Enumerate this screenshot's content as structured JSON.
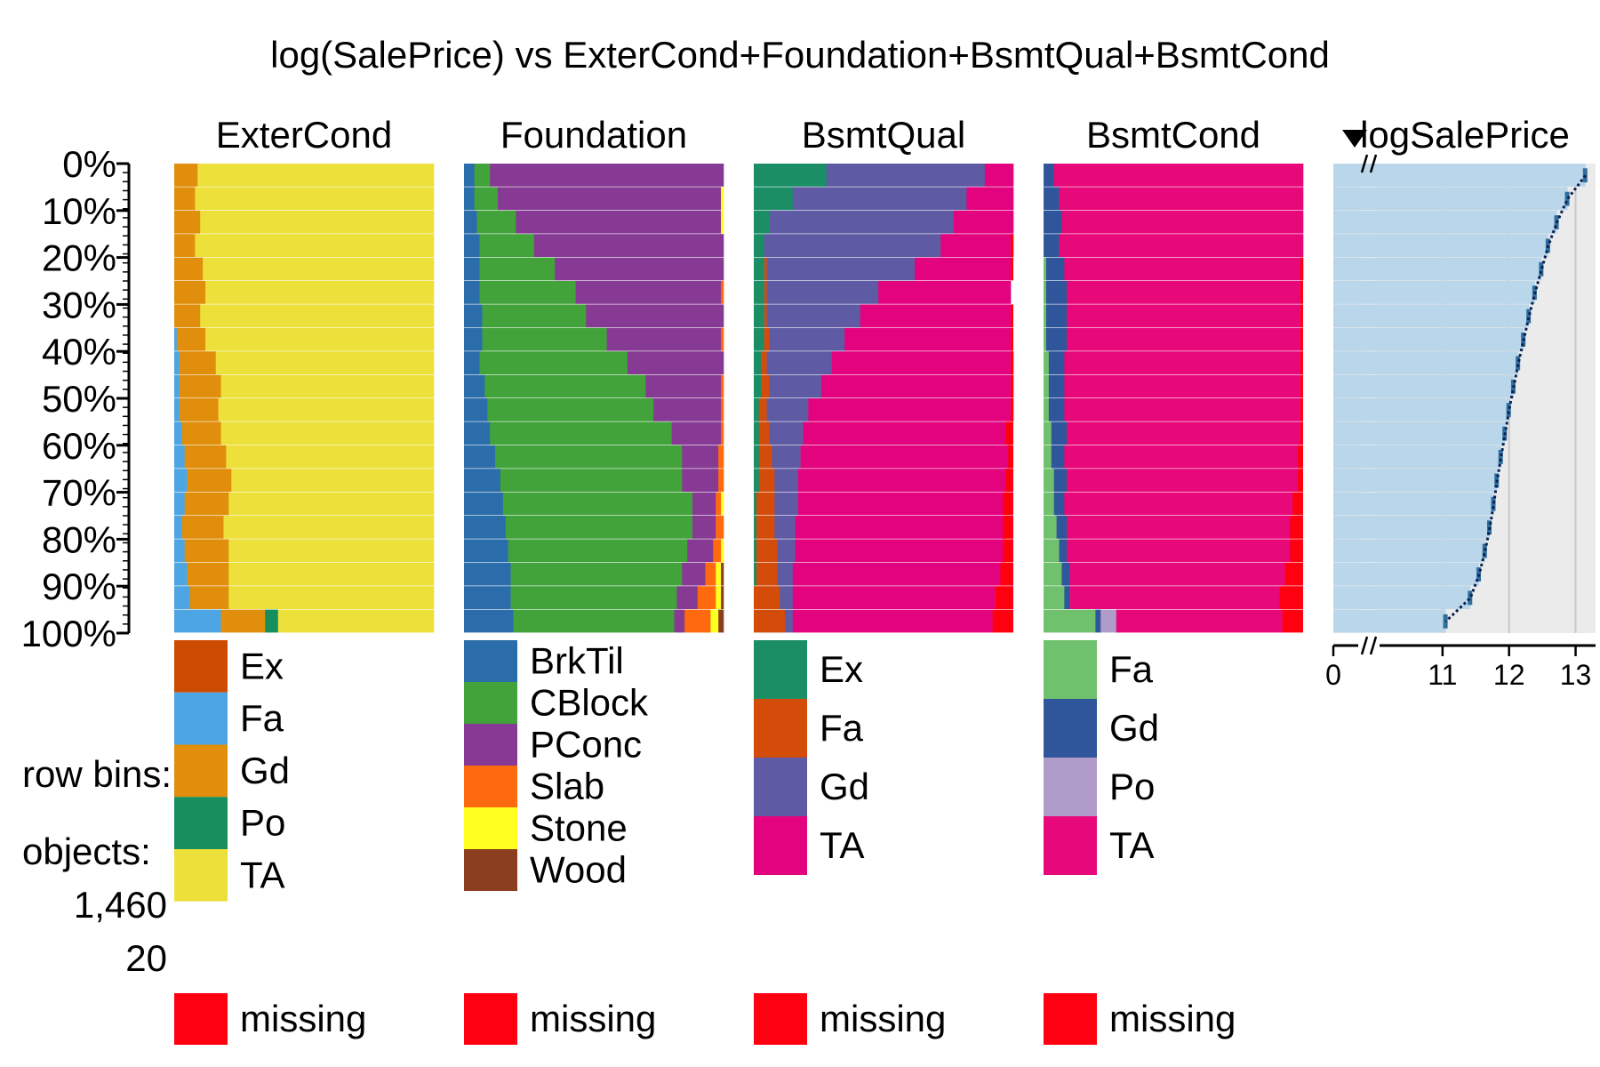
{
  "chart_data": {
    "type": "tableplot",
    "title": "log(SalePrice) vs ExterCond+Foundation+BsmtQual+BsmtCond",
    "sort_variable": "logSalePrice",
    "row_axis": {
      "ticks": [
        "0%",
        "10%",
        "20%",
        "30%",
        "40%",
        "50%",
        "60%",
        "70%",
        "80%",
        "90%",
        "100%"
      ]
    },
    "info": {
      "row_bins_label": "row bins:",
      "row_bins_value": "20",
      "objects_label": "objects:",
      "objects_value": "1,460"
    },
    "missing_label": "missing",
    "missing_color": "#FF0010",
    "categorical": [
      {
        "name": "ExterCond",
        "categories": [
          "Ex",
          "Fa",
          "Gd",
          "Po",
          "TA"
        ],
        "colors": [
          "#CC4C02",
          "#4DA6E3",
          "#E08E0B",
          "#168E5E",
          "#EDE03A"
        ],
        "bin_fractions": [
          [
            0.0,
            0.0,
            0.09,
            0.0,
            0.91
          ],
          [
            0.0,
            0.0,
            0.08,
            0.0,
            0.92
          ],
          [
            0.0,
            0.0,
            0.1,
            0.0,
            0.9
          ],
          [
            0.0,
            0.0,
            0.08,
            0.0,
            0.92
          ],
          [
            0.0,
            0.0,
            0.11,
            0.0,
            0.89
          ],
          [
            0.0,
            0.0,
            0.12,
            0.0,
            0.88
          ],
          [
            0.0,
            0.0,
            0.1,
            0.0,
            0.9
          ],
          [
            0.0,
            0.01,
            0.11,
            0.0,
            0.88
          ],
          [
            0.0,
            0.02,
            0.14,
            0.0,
            0.84
          ],
          [
            0.0,
            0.02,
            0.16,
            0.0,
            0.82
          ],
          [
            0.0,
            0.02,
            0.15,
            0.0,
            0.83
          ],
          [
            0.0,
            0.03,
            0.15,
            0.0,
            0.82
          ],
          [
            0.0,
            0.04,
            0.16,
            0.0,
            0.8
          ],
          [
            0.0,
            0.05,
            0.17,
            0.0,
            0.78
          ],
          [
            0.0,
            0.04,
            0.17,
            0.0,
            0.79
          ],
          [
            0.0,
            0.03,
            0.16,
            0.0,
            0.81
          ],
          [
            0.0,
            0.04,
            0.17,
            0.0,
            0.79
          ],
          [
            0.0,
            0.05,
            0.16,
            0.0,
            0.79
          ],
          [
            0.0,
            0.06,
            0.15,
            0.0,
            0.79
          ],
          [
            0.0,
            0.18,
            0.17,
            0.05,
            0.6
          ]
        ],
        "missing_fractions": [
          0,
          0,
          0,
          0,
          0,
          0,
          0,
          0,
          0,
          0,
          0,
          0,
          0,
          0,
          0,
          0,
          0,
          0,
          0,
          0
        ]
      },
      {
        "name": "Foundation",
        "categories": [
          "BrkTil",
          "CBlock",
          "PConc",
          "Slab",
          "Stone",
          "Wood"
        ],
        "colors": [
          "#2B6CAA",
          "#41A33A",
          "#873A93",
          "#FF6A0E",
          "#FFFF22",
          "#8B3F1F"
        ],
        "bin_fractions": [
          [
            0.04,
            0.06,
            0.9,
            0.0,
            0.0,
            0.0
          ],
          [
            0.04,
            0.09,
            0.86,
            0.0,
            0.01,
            0.0
          ],
          [
            0.05,
            0.15,
            0.79,
            0.0,
            0.01,
            0.0
          ],
          [
            0.06,
            0.21,
            0.73,
            0.0,
            0.0,
            0.0
          ],
          [
            0.06,
            0.29,
            0.65,
            0.0,
            0.0,
            0.0
          ],
          [
            0.06,
            0.37,
            0.56,
            0.01,
            0.0,
            0.0
          ],
          [
            0.07,
            0.4,
            0.53,
            0.0,
            0.0,
            0.0
          ],
          [
            0.07,
            0.48,
            0.44,
            0.01,
            0.0,
            0.0
          ],
          [
            0.06,
            0.57,
            0.37,
            0.0,
            0.0,
            0.0
          ],
          [
            0.08,
            0.62,
            0.29,
            0.01,
            0.0,
            0.0
          ],
          [
            0.09,
            0.64,
            0.26,
            0.01,
            0.0,
            0.0
          ],
          [
            0.1,
            0.7,
            0.19,
            0.01,
            0.0,
            0.0
          ],
          [
            0.12,
            0.72,
            0.14,
            0.02,
            0.0,
            0.0
          ],
          [
            0.14,
            0.7,
            0.14,
            0.02,
            0.0,
            0.0
          ],
          [
            0.15,
            0.73,
            0.09,
            0.02,
            0.01,
            0.0
          ],
          [
            0.16,
            0.72,
            0.09,
            0.03,
            0.0,
            0.0
          ],
          [
            0.17,
            0.69,
            0.1,
            0.03,
            0.01,
            0.0
          ],
          [
            0.18,
            0.66,
            0.09,
            0.04,
            0.02,
            0.01
          ],
          [
            0.18,
            0.64,
            0.08,
            0.07,
            0.02,
            0.01
          ],
          [
            0.19,
            0.62,
            0.04,
            0.1,
            0.03,
            0.02
          ]
        ],
        "missing_fractions": [
          0,
          0,
          0,
          0,
          0,
          0,
          0,
          0,
          0,
          0,
          0,
          0,
          0,
          0,
          0,
          0,
          0,
          0,
          0,
          0
        ]
      },
      {
        "name": "BsmtQual",
        "categories": [
          "Ex",
          "Fa",
          "Gd",
          "TA"
        ],
        "colors": [
          "#1B8E66",
          "#D34C0A",
          "#5E5BA4",
          "#E3037E"
        ],
        "bin_fractions": [
          [
            0.28,
            0.0,
            0.61,
            0.11
          ],
          [
            0.15,
            0.0,
            0.67,
            0.18
          ],
          [
            0.06,
            0.0,
            0.71,
            0.23
          ],
          [
            0.04,
            0.0,
            0.68,
            0.28
          ],
          [
            0.04,
            0.01,
            0.57,
            0.37
          ],
          [
            0.04,
            0.01,
            0.43,
            0.51
          ],
          [
            0.04,
            0.01,
            0.36,
            0.58
          ],
          [
            0.04,
            0.02,
            0.29,
            0.64
          ],
          [
            0.03,
            0.02,
            0.25,
            0.7
          ],
          [
            0.03,
            0.03,
            0.2,
            0.74
          ],
          [
            0.02,
            0.03,
            0.16,
            0.79
          ],
          [
            0.02,
            0.04,
            0.13,
            0.8
          ],
          [
            0.02,
            0.05,
            0.11,
            0.81
          ],
          [
            0.02,
            0.06,
            0.09,
            0.82
          ],
          [
            0.01,
            0.07,
            0.09,
            0.81
          ],
          [
            0.01,
            0.07,
            0.08,
            0.81
          ],
          [
            0.01,
            0.08,
            0.07,
            0.81
          ],
          [
            0.01,
            0.08,
            0.06,
            0.82
          ],
          [
            0.0,
            0.1,
            0.05,
            0.78
          ],
          [
            0.0,
            0.12,
            0.03,
            0.77
          ]
        ],
        "missing_fractions": [
          0,
          0,
          0,
          0.01,
          0.01,
          0,
          0.01,
          0.01,
          0.01,
          0.01,
          0.01,
          0.03,
          0.02,
          0.03,
          0.04,
          0.04,
          0.04,
          0.05,
          0.07,
          0.08
        ]
      },
      {
        "name": "BsmtCond",
        "categories": [
          "Fa",
          "Gd",
          "Po",
          "TA"
        ],
        "colors": [
          "#70C16D",
          "#2F569B",
          "#AF9CC9",
          "#E70879"
        ],
        "bin_fractions": [
          [
            0.0,
            0.04,
            0.0,
            0.96
          ],
          [
            0.0,
            0.06,
            0.0,
            0.94
          ],
          [
            0.0,
            0.07,
            0.0,
            0.93
          ],
          [
            0.0,
            0.06,
            0.0,
            0.94
          ],
          [
            0.01,
            0.07,
            0.0,
            0.92
          ],
          [
            0.01,
            0.08,
            0.0,
            0.9
          ],
          [
            0.01,
            0.08,
            0.0,
            0.9
          ],
          [
            0.01,
            0.08,
            0.0,
            0.9
          ],
          [
            0.02,
            0.06,
            0.0,
            0.91
          ],
          [
            0.02,
            0.06,
            0.0,
            0.91
          ],
          [
            0.02,
            0.06,
            0.0,
            0.91
          ],
          [
            0.03,
            0.06,
            0.0,
            0.9
          ],
          [
            0.03,
            0.05,
            0.0,
            0.9
          ],
          [
            0.04,
            0.05,
            0.0,
            0.89
          ],
          [
            0.04,
            0.04,
            0.0,
            0.88
          ],
          [
            0.05,
            0.04,
            0.0,
            0.86
          ],
          [
            0.06,
            0.03,
            0.0,
            0.86
          ],
          [
            0.07,
            0.03,
            0.0,
            0.83
          ],
          [
            0.08,
            0.02,
            0.0,
            0.81
          ],
          [
            0.2,
            0.02,
            0.06,
            0.64
          ]
        ],
        "missing_fractions": [
          0,
          0,
          0,
          0,
          0.01,
          0.01,
          0.01,
          0.01,
          0.01,
          0.01,
          0.01,
          0.01,
          0.02,
          0.02,
          0.04,
          0.05,
          0.05,
          0.07,
          0.09,
          0.08
        ]
      }
    ],
    "numeric": {
      "name": "logSalePrice",
      "xlim": [
        0,
        13.3
      ],
      "x_ticks": [
        "0",
        "11",
        "12",
        "13"
      ],
      "bar_color": "#B9D6EA",
      "bar_edge_color": "#2E6E9E",
      "mean_line_color": "#0B1F4F",
      "bin_means": [
        13.15,
        12.88,
        12.72,
        12.59,
        12.49,
        12.39,
        12.3,
        12.22,
        12.14,
        12.07,
        12.0,
        11.94,
        11.88,
        11.82,
        11.77,
        11.71,
        11.64,
        11.55,
        11.42,
        11.05
      ]
    }
  }
}
